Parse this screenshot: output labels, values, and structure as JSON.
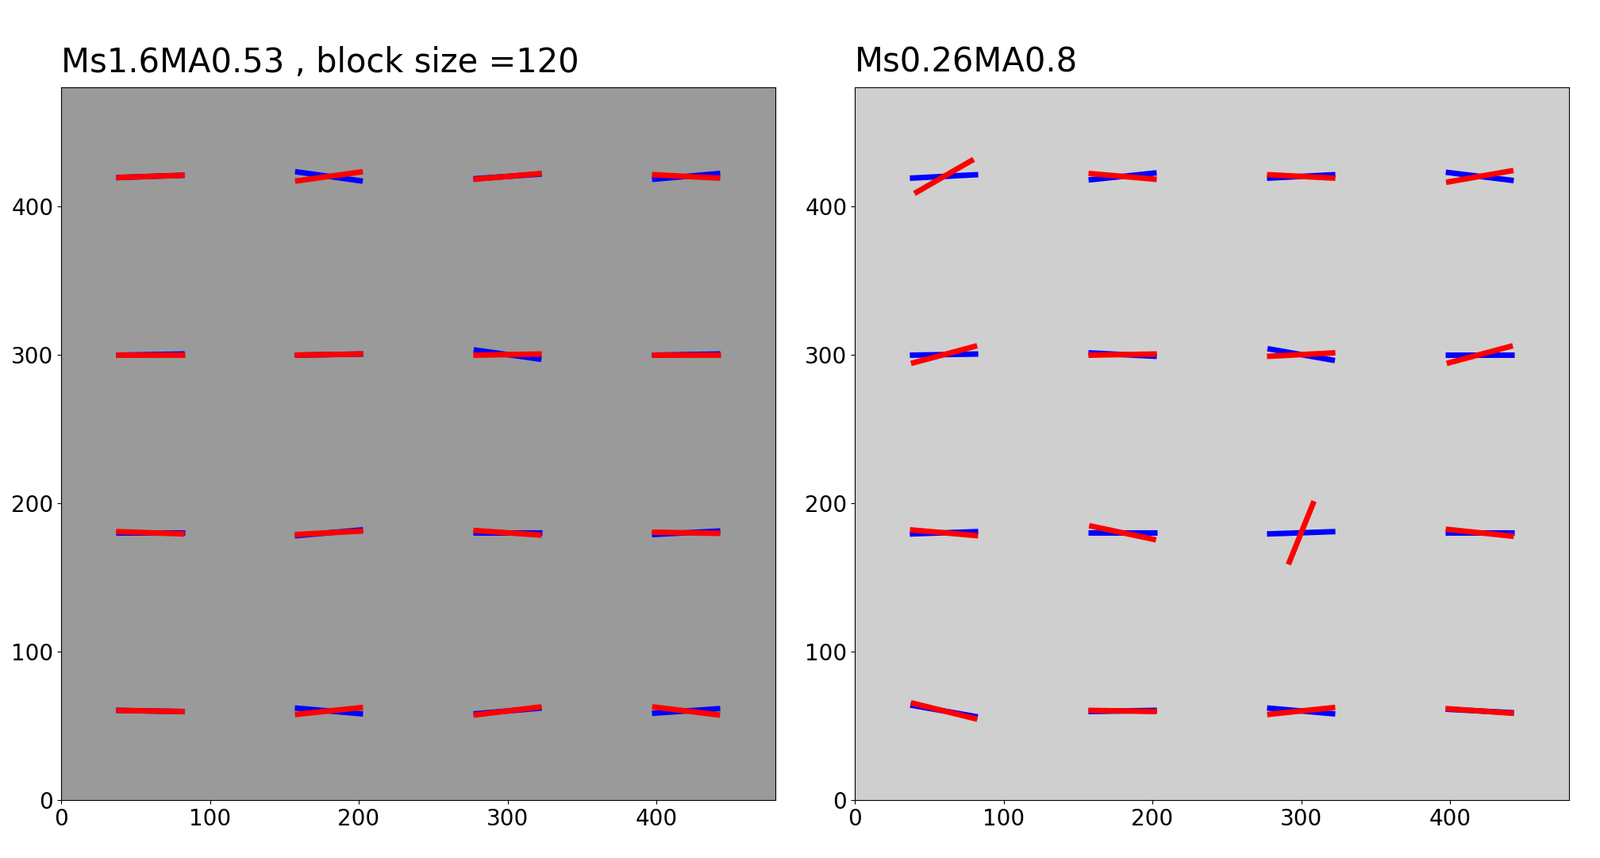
{
  "chart_data": [
    {
      "type": "orientation",
      "title": "Ms1.6MA0.53 , block size =120",
      "x": [
        60,
        180,
        300,
        420
      ],
      "y": [
        420,
        300,
        180,
        60
      ],
      "xlim": [
        0,
        480
      ],
      "ylim": [
        0,
        480
      ],
      "xticks": [
        0,
        100,
        200,
        300,
        400
      ],
      "yticks": [
        0,
        100,
        200,
        300,
        400
      ],
      "series": [
        {
          "color": "#0000ff",
          "angles": [
            [
              2,
              -8,
              4,
              5
            ],
            [
              1,
              1,
              -8,
              1
            ],
            [
              0,
              5,
              0,
              3
            ],
            [
              -1,
              -5,
              5,
              4
            ]
          ]
        },
        {
          "color": "#ff0000",
          "angles": [
            [
              2,
              8,
              5,
              -3
            ],
            [
              0,
              1,
              1,
              0
            ],
            [
              -2,
              3,
              -4,
              -1
            ],
            [
              -1,
              6,
              7,
              -7
            ]
          ]
        }
      ]
    },
    {
      "type": "orientation",
      "title": "Ms0.26MA0.8",
      "x": [
        60,
        180,
        300,
        420
      ],
      "y": [
        420,
        300,
        180,
        60
      ],
      "xlim": [
        0,
        480
      ],
      "ylim": [
        0,
        480
      ],
      "xticks": [
        0,
        100,
        200,
        300,
        400
      ],
      "yticks": [
        0,
        100,
        200,
        300,
        400
      ],
      "series": [
        {
          "color": "#0000ff",
          "angles": [
            [
              3,
              6,
              3,
              -7
            ],
            [
              1,
              -3,
              -10,
              0
            ],
            [
              2,
              0,
              2,
              0
            ],
            [
              -10,
              1,
              -5,
              -3
            ]
          ]
        },
        {
          "color": "#ff0000",
          "angles": [
            [
              30,
              -5,
              -3,
              10
            ],
            [
              15,
              1,
              3,
              15
            ],
            [
              -5,
              -12,
              68,
              -6
            ],
            [
              -14,
              -1,
              6,
              -4
            ]
          ]
        }
      ]
    }
  ]
}
